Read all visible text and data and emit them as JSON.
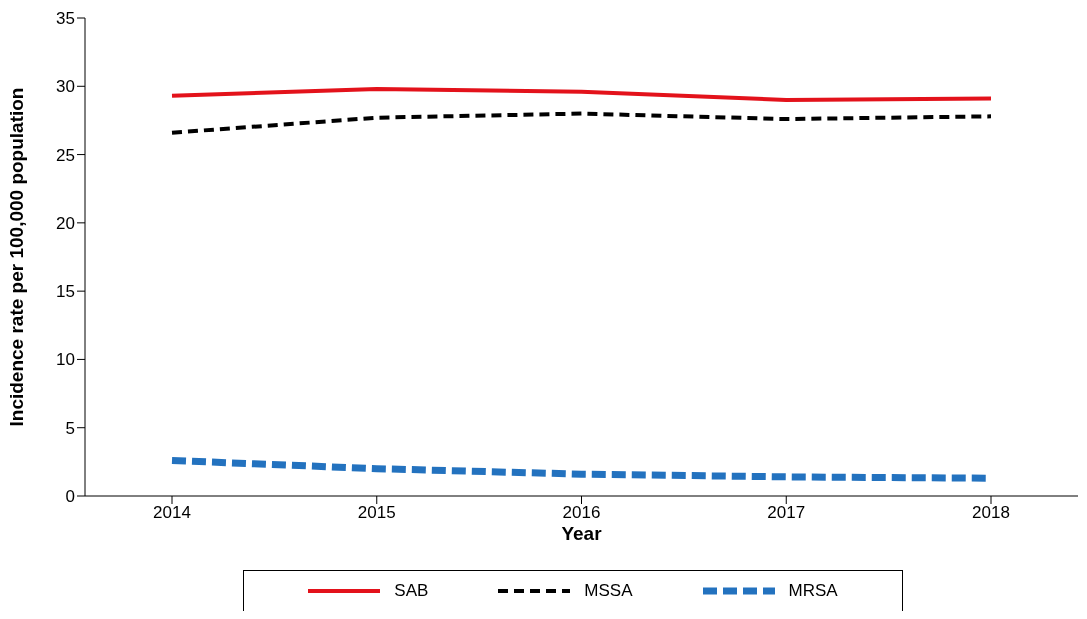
{
  "chart_data": {
    "type": "line",
    "xlabel": "Year",
    "ylabel": "Incidence rate per 100,000 population",
    "categories": [
      "2014",
      "2015",
      "2016",
      "2017",
      "2018"
    ],
    "series": [
      {
        "name": "SAB",
        "color": "#e3121b",
        "line_style": "solid",
        "values": [
          29.3,
          29.8,
          29.6,
          29.0,
          29.1
        ]
      },
      {
        "name": "MSSA",
        "color": "#000000",
        "line_style": "dashed",
        "values": [
          26.6,
          27.7,
          28.0,
          27.6,
          27.8
        ]
      },
      {
        "name": "MRSA",
        "color": "#2372bf",
        "line_style": "dashed",
        "values": [
          2.6,
          2.0,
          1.6,
          1.4,
          1.3
        ]
      }
    ],
    "ylim": [
      0,
      35
    ],
    "yticks": [
      0,
      5,
      10,
      15,
      20,
      25,
      30,
      35
    ],
    "grid": false,
    "legend": "bottom",
    "marker": "none"
  }
}
